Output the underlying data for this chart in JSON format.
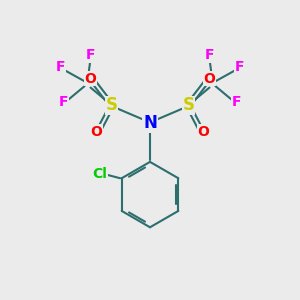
{
  "background_color": "#ebebeb",
  "atom_colors": {
    "F": "#ff00ff",
    "O": "#ff0000",
    "S": "#cccc00",
    "N": "#0000ff",
    "Cl": "#00cc00",
    "C": "#2d6e6e",
    "bond": "#2d6e6e"
  },
  "font_sizes": {
    "F": 10,
    "O": 10,
    "S": 12,
    "N": 12,
    "Cl": 10
  }
}
